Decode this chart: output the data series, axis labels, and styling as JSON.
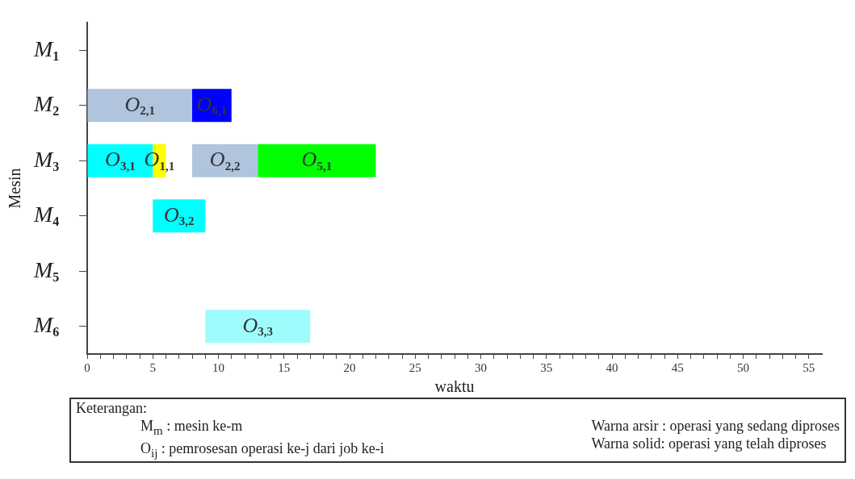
{
  "chart_data": {
    "type": "bar",
    "orientation": "horizontal",
    "xlabel": "waktu",
    "ylabel": "Mesin",
    "categories": [
      "M$_{1}$",
      "M$_{2}$",
      "M$_{3}$",
      "M$_{4}$",
      "M$_{5}$",
      "M$_{6}$"
    ],
    "series": [
      {
        "name": "O$_{2,1}$",
        "color": "#b0c4de",
        "values": [
          null,
          8,
          null,
          null,
          null,
          null
        ],
        "base": [
          null,
          0,
          null,
          null,
          null,
          null
        ]
      },
      {
        "name": "O$_{6,1}$",
        "color": "#0000ff",
        "values": [
          null,
          3,
          null,
          null,
          null,
          null
        ],
        "base": [
          null,
          8,
          null,
          null,
          null,
          null
        ]
      },
      {
        "name": "O$_{3,1}$",
        "color": "#00ffff",
        "values": [
          null,
          null,
          5,
          null,
          null,
          null
        ],
        "base": [
          null,
          null,
          0,
          null,
          null,
          null
        ]
      },
      {
        "name": "O$_{1,1}$",
        "color": "#ffff00",
        "values": [
          null,
          null,
          1,
          null,
          null,
          null
        ],
        "base": [
          null,
          null,
          5,
          null,
          null,
          null
        ]
      },
      {
        "name": "O$_{2,2}$",
        "color": "#b0c4de",
        "values": [
          null,
          null,
          5,
          null,
          null,
          null
        ],
        "base": [
          null,
          null,
          8,
          null,
          null,
          null
        ]
      },
      {
        "name": "O$_{5,1}$",
        "color": "#00ff00",
        "values": [
          null,
          null,
          9,
          null,
          null,
          null
        ],
        "base": [
          null,
          null,
          13,
          null,
          null,
          null
        ]
      },
      {
        "name": "O$_{3,2}$",
        "color": "#00ffff",
        "values": [
          null,
          null,
          null,
          4,
          null,
          null
        ],
        "base": [
          null,
          null,
          null,
          5,
          null,
          null
        ]
      },
      {
        "name": "O$_{3,3}$",
        "color": "#9ffcfc",
        "values": [
          null,
          null,
          null,
          null,
          null,
          8
        ],
        "base": [
          null,
          null,
          null,
          null,
          null,
          9
        ]
      }
    ],
    "xlim": [
      0,
      56
    ],
    "xticks": [
      0,
      {
        "value": 1,
        "label": null
      },
      {
        "value": 2,
        "label": null
      },
      {
        "value": 3,
        "label": null
      },
      {
        "value": 4,
        "label": null
      },
      5,
      {
        "value": 6,
        "label": null
      },
      {
        "value": 7,
        "label": null
      },
      {
        "value": 8,
        "label": null
      },
      {
        "value": 9,
        "label": null
      },
      10,
      {
        "value": 11,
        "label": null
      },
      {
        "value": 12,
        "label": null
      },
      {
        "value": 13,
        "label": null
      },
      {
        "value": 14,
        "label": null
      },
      15,
      {
        "value": 16,
        "label": null
      },
      {
        "value": 17,
        "label": null
      },
      {
        "value": 18,
        "label": null
      },
      {
        "value": 19,
        "label": null
      },
      20,
      {
        "value": 21,
        "label": null
      },
      {
        "value": 22,
        "label": null
      },
      {
        "value": 23,
        "label": null
      },
      {
        "value": 24,
        "label": null
      },
      25,
      {
        "value": 26,
        "label": null
      },
      {
        "value": 27,
        "label": null
      },
      {
        "value": 28,
        "label": null
      },
      {
        "value": 29,
        "label": null
      },
      30,
      {
        "value": 31,
        "label": null
      },
      {
        "value": 32,
        "label": null
      },
      {
        "value": 33,
        "label": null
      },
      {
        "value": 34,
        "label": null
      },
      35,
      {
        "value": 36,
        "label": null
      },
      {
        "value": 37,
        "label": null
      },
      {
        "value": 38,
        "label": null
      },
      {
        "value": 39,
        "label": null
      },
      40,
      {
        "value": 41,
        "label": null
      },
      {
        "value": 42,
        "label": null
      },
      {
        "value": 43,
        "label": null
      },
      {
        "value": 44,
        "label": null
      },
      45,
      {
        "value": 46,
        "label": null
      },
      {
        "value": 47,
        "label": null
      },
      {
        "value": 48,
        "label": null
      },
      {
        "value": 49,
        "label": null
      },
      50,
      {
        "value": 51,
        "label": null
      },
      {
        "value": 52,
        "label": null
      },
      {
        "value": 53,
        "label": null
      },
      {
        "value": 54,
        "label": null
      },
      55
    ],
    "annotations": [
      "Keterangan:",
      "M$_{m}$ : mesin ke-m",
      "O$_{ij}$ : pemrosesan operasi ke-j dari job ke-i",
      "Warna arsir : operasi yang sedang diproses",
      "Warna solid: operasi yang telah diproses"
    ]
  }
}
